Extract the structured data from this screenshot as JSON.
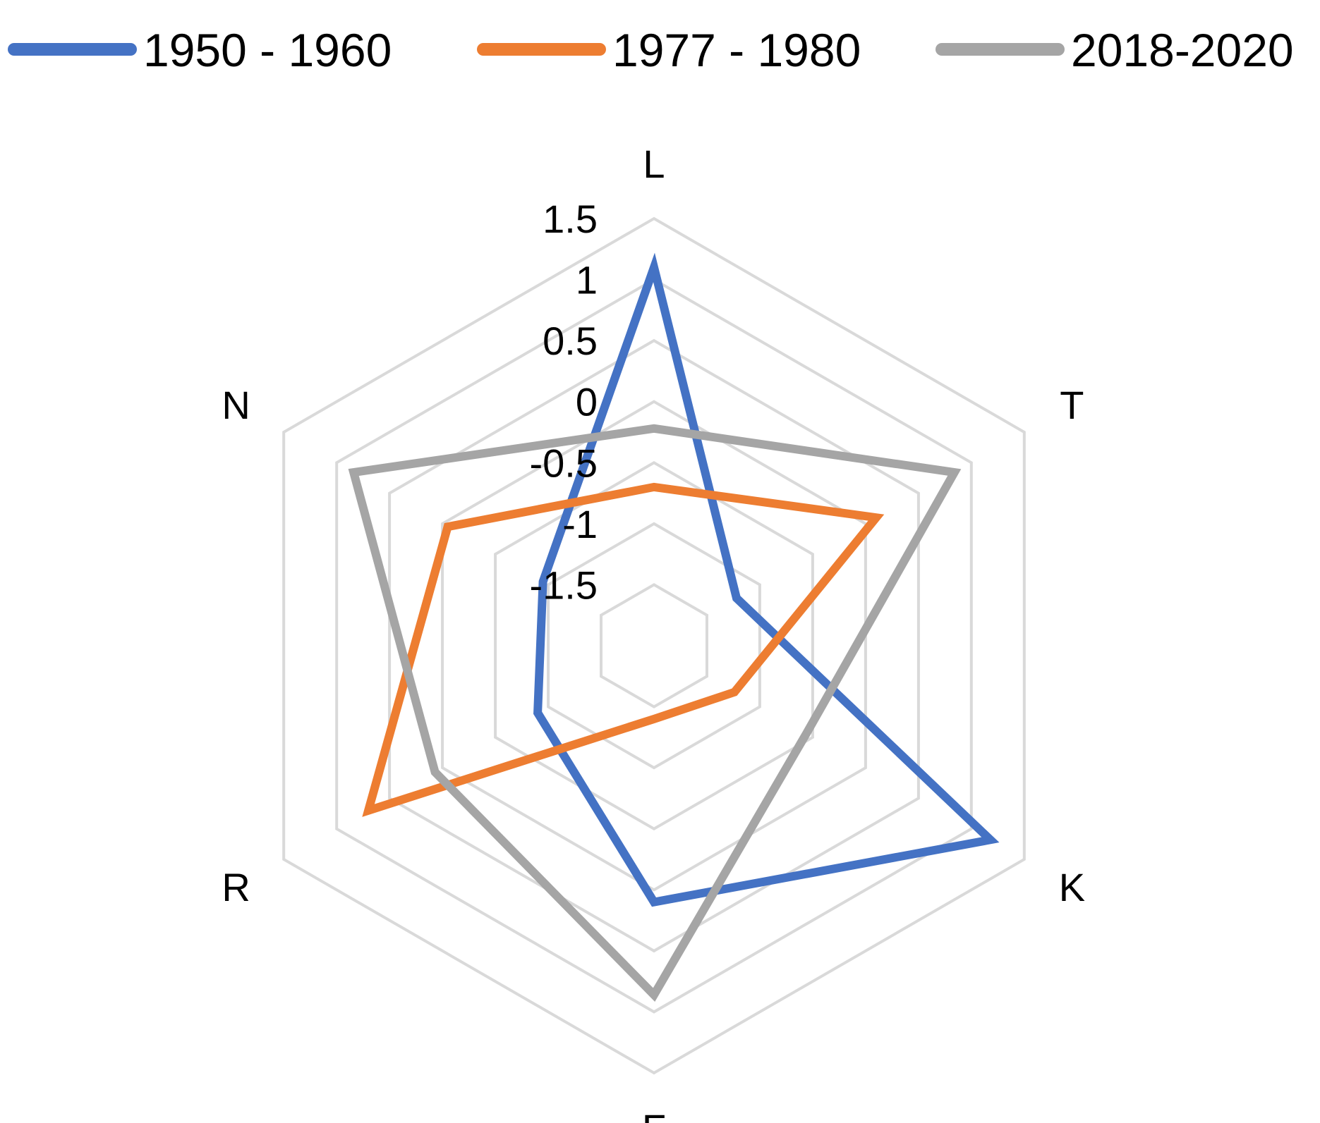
{
  "chart_data": {
    "type": "radar",
    "title": "",
    "axes": [
      "L",
      "T",
      "K",
      "F",
      "R",
      "N"
    ],
    "scale": {
      "min": -2,
      "max": 1.5,
      "ticks": [
        -1.5,
        -1,
        -0.5,
        0,
        0.5,
        1,
        1.5
      ],
      "tick_labels": [
        "-1.5",
        "-1",
        "-0.5",
        "0",
        "0.5",
        "1",
        "1.5"
      ]
    },
    "grid": true,
    "legend_position": "top",
    "series": [
      {
        "name": "1950 - 1960",
        "color": "#4472C4",
        "values": [
          1.1,
          -1.22,
          1.18,
          0.1,
          -0.9,
          -0.95
        ]
      },
      {
        "name": "1977 - 1980",
        "color": "#ED7D31",
        "values": [
          -0.7,
          0.1,
          -1.24,
          -1.4,
          0.7,
          -0.05
        ]
      },
      {
        "name": "2018-2020",
        "color": "#A5A5A5",
        "values": [
          -0.22,
          0.84,
          -0.56,
          0.86,
          0.07,
          0.84
        ]
      }
    ]
  }
}
